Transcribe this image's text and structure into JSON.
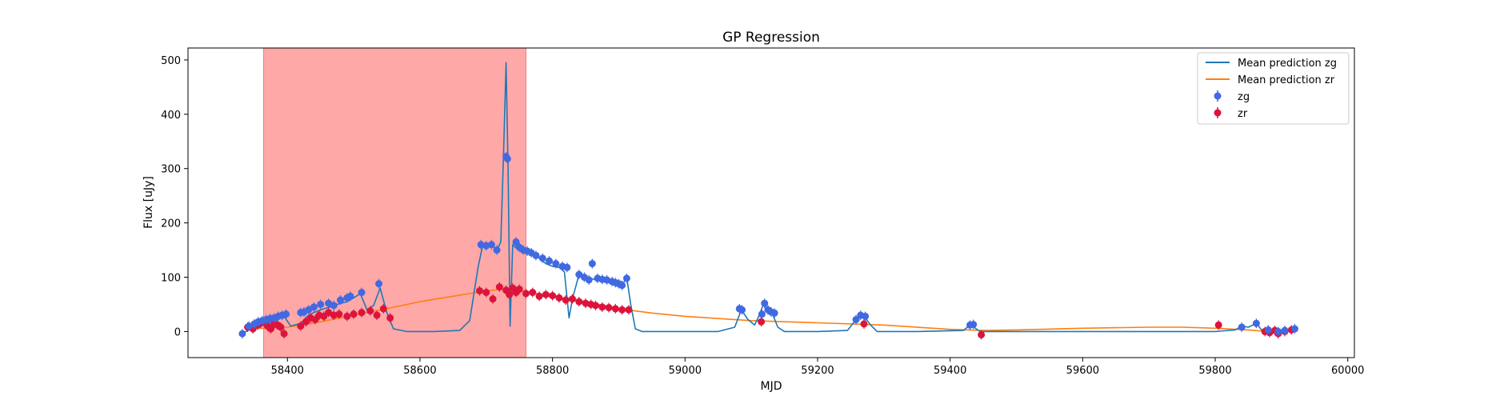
{
  "chart_data": {
    "type": "line",
    "title": "GP Regression",
    "xlabel": "MJD",
    "ylabel": "Flux [uJy]",
    "xlim": [
      58250,
      60010
    ],
    "ylim": [
      -48,
      522
    ],
    "xticks": [
      58400,
      58600,
      58800,
      59000,
      59200,
      59400,
      59600,
      59800,
      60000
    ],
    "yticks": [
      0,
      100,
      200,
      300,
      400,
      500
    ],
    "legend_position": "top-right",
    "shaded_region": {
      "x0": 58364,
      "x1": 58760,
      "color": "#ffa8a8"
    },
    "series": [
      {
        "name": "Mean prediction zg",
        "kind": "line",
        "color": "#1f77b4",
        "x": [
          58330,
          58345,
          58360,
          58375,
          58385,
          58395,
          58405,
          58420,
          58430,
          58440,
          58455,
          58465,
          58475,
          58490,
          58500,
          58510,
          58520,
          58530,
          58540,
          58550,
          58560,
          58580,
          58620,
          58660,
          58675,
          58688,
          58695,
          58702,
          58710,
          58716,
          58722,
          58726,
          58730,
          58733,
          58736,
          58740,
          58744,
          58750,
          58760,
          58770,
          58780,
          58790,
          58800,
          58810,
          58818,
          58825,
          58830,
          58840,
          58850,
          58858,
          58865,
          58875,
          58885,
          58895,
          58905,
          58912,
          58918,
          58925,
          58935,
          58950,
          59000,
          59050,
          59075,
          59085,
          59095,
          59105,
          59112,
          59118,
          59125,
          59132,
          59140,
          59150,
          59200,
          59245,
          59258,
          59265,
          59272,
          59280,
          59290,
          59350,
          59420,
          59430,
          59436,
          59445,
          59460,
          59600,
          59800,
          59830,
          59840,
          59850,
          59862,
          59870,
          59880,
          59900,
          59920
        ],
        "y": [
          -5,
          5,
          12,
          18,
          22,
          28,
          10,
          15,
          28,
          35,
          42,
          45,
          50,
          55,
          62,
          70,
          40,
          48,
          80,
          35,
          5,
          0,
          0,
          2,
          20,
          120,
          160,
          162,
          158,
          150,
          165,
          320,
          495,
          300,
          10,
          160,
          155,
          150,
          145,
          140,
          135,
          125,
          120,
          118,
          110,
          25,
          60,
          105,
          100,
          98,
          95,
          92,
          90,
          88,
          85,
          100,
          50,
          5,
          0,
          0,
          0,
          0,
          8,
          40,
          22,
          12,
          30,
          50,
          40,
          32,
          8,
          0,
          0,
          2,
          22,
          30,
          25,
          12,
          0,
          0,
          2,
          12,
          8,
          0,
          0,
          0,
          0,
          3,
          10,
          8,
          15,
          3,
          0,
          0,
          2
        ]
      },
      {
        "name": "Mean prediction zr",
        "kind": "line",
        "color": "#ff7f0e",
        "x": [
          58340,
          58400,
          58450,
          58500,
          58550,
          58600,
          58650,
          58700,
          58730,
          58760,
          58800,
          58850,
          58900,
          58950,
          59000,
          59100,
          59200,
          59300,
          59400,
          59450,
          59500,
          59600,
          59700,
          59750,
          59800,
          59850,
          59880,
          59920
        ],
        "y": [
          5,
          8,
          18,
          30,
          42,
          55,
          65,
          75,
          78,
          74,
          64,
          55,
          42,
          34,
          28,
          20,
          16,
          12,
          4,
          2,
          3,
          6,
          8,
          8,
          6,
          3,
          0,
          1
        ]
      },
      {
        "name": "zg",
        "kind": "scatter",
        "color": "#4169e1",
        "x": [
          58332,
          58342,
          58350,
          58356,
          58362,
          58368,
          58374,
          58380,
          58386,
          58392,
          58398,
          58420,
          58425,
          58432,
          58440,
          58450,
          58462,
          58470,
          58480,
          58490,
          58495,
          58512,
          58538,
          58692,
          58700,
          58708,
          58716,
          58730,
          58732,
          58745,
          58750,
          58756,
          58762,
          58768,
          58775,
          58785,
          58795,
          58805,
          58815,
          58822,
          58840,
          58848,
          58855,
          58860,
          58868,
          58875,
          58882,
          58890,
          58895,
          58900,
          58905,
          58912,
          59082,
          59086,
          59116,
          59120,
          59125,
          59130,
          59135,
          59258,
          59265,
          59272,
          59430,
          59435,
          59840,
          59862,
          59880,
          59895,
          59905,
          59920
        ],
        "y": [
          -4,
          10,
          14,
          18,
          20,
          22,
          24,
          25,
          28,
          30,
          32,
          35,
          36,
          40,
          45,
          50,
          52,
          48,
          58,
          62,
          65,
          72,
          88,
          160,
          158,
          160,
          150,
          322,
          318,
          165,
          155,
          150,
          148,
          145,
          140,
          135,
          130,
          125,
          120,
          118,
          105,
          100,
          95,
          125,
          98,
          96,
          95,
          92,
          90,
          88,
          85,
          98,
          42,
          40,
          32,
          52,
          40,
          36,
          34,
          22,
          30,
          28,
          12,
          13,
          8,
          15,
          3,
          0,
          2,
          5
        ]
      },
      {
        "name": "zr",
        "kind": "scatter",
        "color": "#dc143c",
        "x": [
          58340,
          58348,
          58355,
          58360,
          58365,
          58370,
          58375,
          58380,
          58385,
          58390,
          58395,
          58420,
          58428,
          58435,
          58442,
          58448,
          58455,
          58462,
          58470,
          58478,
          58490,
          58500,
          58512,
          58525,
          58535,
          58545,
          58555,
          58690,
          58700,
          58710,
          58720,
          58730,
          58735,
          58740,
          58745,
          58750,
          58760,
          58770,
          58780,
          58790,
          58800,
          58810,
          58820,
          58830,
          58840,
          58850,
          58858,
          58865,
          58875,
          58885,
          58895,
          58905,
          58915,
          59115,
          59270,
          59447,
          59805,
          59875,
          59882,
          59890,
          59895,
          59905,
          59915
        ],
        "y": [
          8,
          5,
          12,
          15,
          18,
          10,
          5,
          14,
          12,
          8,
          -4,
          10,
          18,
          25,
          22,
          30,
          28,
          35,
          30,
          32,
          28,
          32,
          35,
          38,
          30,
          42,
          25,
          75,
          72,
          60,
          82,
          76,
          68,
          80,
          72,
          78,
          70,
          72,
          65,
          68,
          66,
          62,
          58,
          60,
          55,
          52,
          50,
          48,
          45,
          44,
          42,
          40,
          40,
          18,
          14,
          -6,
          12,
          0,
          -2,
          2,
          -4,
          0,
          3
        ]
      }
    ]
  }
}
